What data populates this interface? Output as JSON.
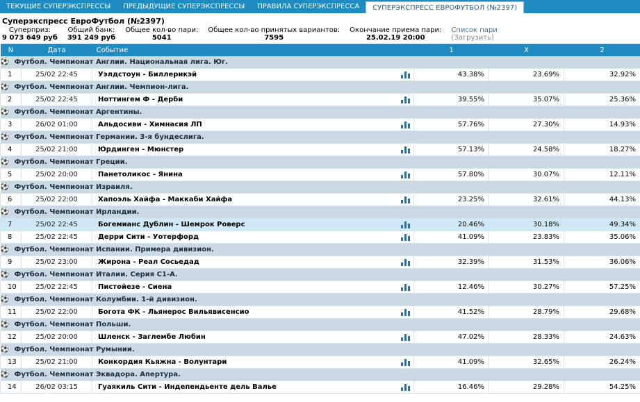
{
  "tabs": [
    "ТЕКУЩИЕ СУПЕРЭКСПРЕССЫ",
    "ПРЕДЫДУЩИЕ СУПЕРЭКСПРЕССЫ",
    "ПРАВИЛА СУПЕРЭКСПРЕССА",
    "СУПЕРЭКСПРЕСС ЕВРОФУТБОЛ (№2397)"
  ],
  "title": "Суперэкспресс ЕвроФутбол (№2397)",
  "info": {
    "prize_label": "Суперприз:",
    "prize_value": "9 073 649 руб",
    "bank_label": "Общий банк:",
    "bank_value": "391 249 руб",
    "pairs_label": "Общее кол-во пари:",
    "pairs_value": "5041",
    "variants_label": "Общее кол-во принятых вариантов:",
    "variants_value": "7595",
    "end_label": "Окончание приема пари:",
    "end_value": "25.02.19 20:00",
    "list_link": "Список пари",
    "list_sub": "(Загрузить)"
  },
  "headers": {
    "n": "N",
    "date": "Дата",
    "event": "Событие",
    "p1": "1",
    "px": "X",
    "p2": "2"
  },
  "rows": [
    {
      "league": "Футбол. Чемпионат Англии. Национальная лига. Юг."
    },
    {
      "n": "1",
      "date": "25/02 22:45",
      "event": "Уэлдстоун - Биллерикэй",
      "p1": "43.38%",
      "px": "23.69%",
      "p2": "32.92%"
    },
    {
      "league": "Футбол. Чемпионат Англии. Чемпион-лига."
    },
    {
      "n": "2",
      "date": "25/02 22:45",
      "event": "Ноттингем Ф - Дерби",
      "p1": "39.55%",
      "px": "35.07%",
      "p2": "25.36%"
    },
    {
      "league": "Футбол. Чемпионат Аргентины."
    },
    {
      "n": "3",
      "date": "26/02 01:00",
      "event": "Альдосиви - Химнасия ЛП",
      "p1": "57.76%",
      "px": "27.30%",
      "p2": "14.93%"
    },
    {
      "league": "Футбол. Чемпионат Германии. 3-я бундеслига."
    },
    {
      "n": "4",
      "date": "25/02 21:00",
      "event": "Юрдинген - Мюнстер",
      "p1": "57.13%",
      "px": "24.58%",
      "p2": "18.27%"
    },
    {
      "league": "Футбол. Чемпионат Греции."
    },
    {
      "n": "5",
      "date": "25/02 20:00",
      "event": "Панетоликос - Янина",
      "p1": "57.80%",
      "px": "30.07%",
      "p2": "12.11%"
    },
    {
      "league": "Футбол. Чемпионат Израиля."
    },
    {
      "n": "6",
      "date": "25/02 22:00",
      "event": "Хапоэль Хайфа - Маккаби Хайфа",
      "p1": "23.25%",
      "px": "32.61%",
      "p2": "44.13%"
    },
    {
      "league": "Футбол. Чемпионат Ирландии."
    },
    {
      "n": "7",
      "date": "25/02 22:45",
      "event": "Богемианс Дублин - Шемрок Роверс",
      "p1": "20.46%",
      "px": "30.18%",
      "p2": "49.34%",
      "alt": true
    },
    {
      "n": "8",
      "date": "25/02 22:45",
      "event": "Дерри Сити - Уотерфорд",
      "p1": "41.09%",
      "px": "23.83%",
      "p2": "35.06%"
    },
    {
      "league": "Футбол. Чемпионат Испании. Примера дивизион."
    },
    {
      "n": "9",
      "date": "25/02 23:00",
      "event": "Жирона - Реал Сосьедад",
      "p1": "32.39%",
      "px": "31.53%",
      "p2": "36.06%"
    },
    {
      "league": "Футбол. Чемпионат Италии. Серия С1-А."
    },
    {
      "n": "10",
      "date": "25/02 22:45",
      "event": "Пистойезе - Сиена",
      "p1": "12.46%",
      "px": "30.27%",
      "p2": "57.25%"
    },
    {
      "league": "Футбол. Чемпионат Колумбии. 1-й дивизион."
    },
    {
      "n": "11",
      "date": "25/02 22:00",
      "event": "Богота ФК - Льянерос Вильявисенсио",
      "p1": "41.52%",
      "px": "28.79%",
      "p2": "29.68%"
    },
    {
      "league": "Футбол. Чемпионат Польши."
    },
    {
      "n": "12",
      "date": "25/02 20:00",
      "event": "Шленск - Заглембе Любин",
      "p1": "47.02%",
      "px": "28.33%",
      "p2": "24.63%"
    },
    {
      "league": "Футбол. Чемпионат Румынии."
    },
    {
      "n": "13",
      "date": "25/02 21:00",
      "event": "Конкордия Кьяжна - Волунтари",
      "p1": "41.09%",
      "px": "32.65%",
      "p2": "26.24%"
    },
    {
      "league": "Футбол. Чемпионат Эквадора. Апертура."
    },
    {
      "n": "14",
      "date": "26/02 03:15",
      "event": "Гуаякиль Сити - Индепендьенте дель Валье",
      "p1": "16.46%",
      "px": "29.28%",
      "p2": "54.25%"
    }
  ]
}
